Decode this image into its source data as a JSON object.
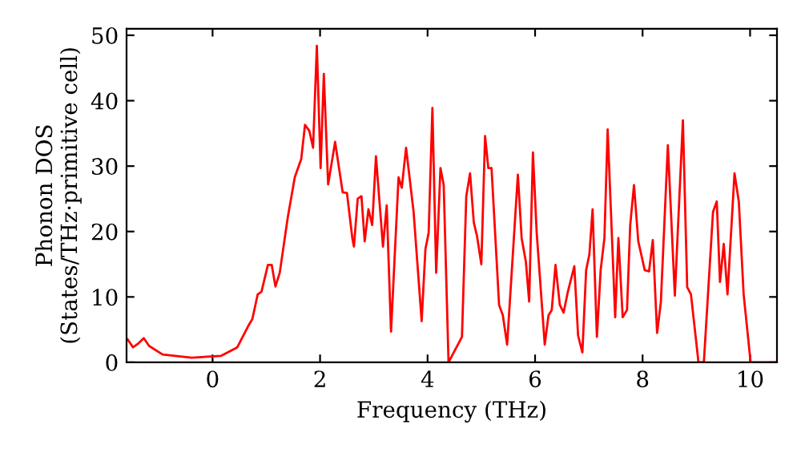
{
  "chart_data": {
    "type": "line",
    "xlabel": "Frequency (THz)",
    "ylabel": "Phonon DOS\n(States/THz·primitive cell)",
    "xlim": [
      -1.6,
      10.5
    ],
    "ylim": [
      0,
      51
    ],
    "xticks": [
      0,
      2,
      4,
      6,
      8,
      10
    ],
    "yticks": [
      0,
      10,
      20,
      30,
      40,
      50
    ],
    "grid": false,
    "legend": false,
    "marker": "none",
    "line_style": "solid",
    "series": [
      {
        "color": "#ff0000",
        "x": [
          -1.58,
          -1.48,
          -1.38,
          -1.28,
          -1.18,
          -0.93,
          -0.39,
          0.16,
          0.46,
          0.66,
          0.74,
          0.84,
          0.91,
          1.03,
          1.1,
          1.17,
          1.25,
          1.4,
          1.53,
          1.65,
          1.72,
          1.8,
          1.87,
          1.94,
          2.01,
          2.07,
          2.15,
          2.28,
          2.42,
          2.5,
          2.6,
          2.63,
          2.7,
          2.77,
          2.83,
          2.9,
          2.97,
          3.04,
          3.17,
          3.24,
          3.32,
          3.46,
          3.52,
          3.6,
          3.74,
          3.89,
          3.96,
          4.02,
          4.09,
          4.16,
          4.24,
          4.3,
          4.39,
          4.64,
          4.72,
          4.79,
          4.86,
          4.92,
          5.0,
          5.07,
          5.13,
          5.19,
          5.33,
          5.4,
          5.48,
          5.68,
          5.75,
          5.83,
          5.89,
          5.96,
          6.03,
          6.18,
          6.25,
          6.31,
          6.38,
          6.46,
          6.53,
          6.61,
          6.73,
          6.8,
          6.88,
          6.95,
          7.01,
          7.07,
          7.15,
          7.22,
          7.29,
          7.35,
          7.49,
          7.55,
          7.63,
          7.71,
          7.77,
          7.84,
          7.92,
          8.04,
          8.12,
          8.19,
          8.27,
          8.34,
          8.47,
          8.6,
          8.75,
          8.83,
          8.9,
          9.04,
          9.14,
          9.31,
          9.38,
          9.44,
          9.51,
          9.58,
          9.71,
          9.79,
          9.88,
          10.01,
          10.5
        ],
        "values": [
          3.5,
          2.3,
          2.9,
          3.7,
          2.5,
          1.2,
          0.7,
          1.0,
          2.3,
          5.5,
          6.6,
          10.4,
          10.8,
          14.9,
          14.9,
          11.6,
          13.7,
          22.2,
          28.3,
          31.1,
          36.3,
          35.4,
          32.8,
          48.4,
          29.7,
          44.1,
          27.2,
          33.7,
          26.0,
          25.9,
          19.0,
          17.7,
          25.0,
          25.4,
          18.5,
          23.4,
          21.0,
          31.5,
          17.7,
          24.0,
          4.7,
          28.3,
          26.7,
          32.8,
          23.0,
          6.3,
          17.3,
          19.8,
          38.9,
          13.7,
          29.7,
          27.1,
          0,
          3.9,
          25.4,
          28.9,
          21.4,
          19.3,
          15.0,
          34.6,
          29.7,
          29.7,
          8.8,
          7.2,
          2.7,
          28.7,
          19.0,
          15.3,
          9.3,
          32.1,
          19.8,
          2.7,
          7.2,
          8.0,
          14.9,
          8.8,
          7.6,
          10.8,
          14.7,
          4.1,
          1.5,
          14.1,
          16.5,
          23.4,
          3.9,
          14.1,
          19.0,
          35.6,
          6.9,
          19.0,
          6.9,
          8.0,
          21.0,
          27.1,
          18.5,
          14.1,
          13.9,
          18.7,
          4.5,
          9.2,
          33.2,
          10.2,
          37.0,
          11.5,
          10.4,
          0,
          0,
          23.0,
          24.6,
          12.3,
          18.1,
          10.4,
          28.9,
          24.6,
          10.4,
          0,
          0
        ]
      }
    ]
  }
}
